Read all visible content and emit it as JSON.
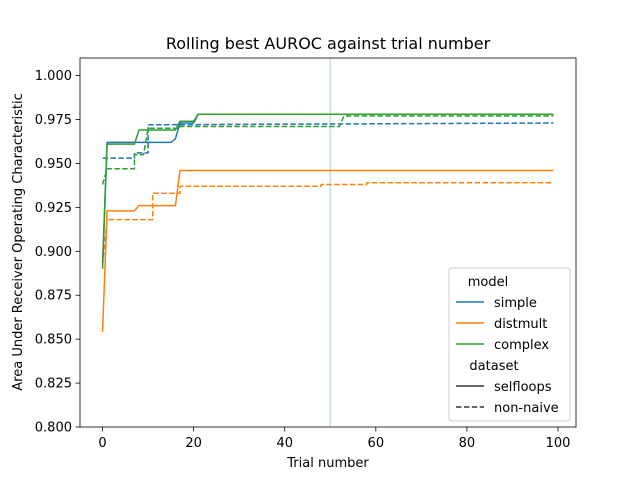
{
  "chart_data": {
    "type": "line",
    "title": "Rolling best AUROC against trial number",
    "xlabel": "Trial number",
    "ylabel": "Area Under Receiver Operating Characteristic",
    "xlim": [
      -4.95,
      103.95
    ],
    "ylim": [
      0.8,
      1.01
    ],
    "xticks": [
      0,
      20,
      40,
      60,
      80,
      100
    ],
    "yticks": [
      0.8,
      0.825,
      0.85,
      0.875,
      0.9,
      0.925,
      0.95,
      0.975,
      1.0
    ],
    "ytick_labels": [
      "0.800",
      "0.825",
      "0.850",
      "0.875",
      "0.900",
      "0.925",
      "0.950",
      "0.975",
      "1.000"
    ],
    "vline": {
      "x": 50,
      "color": "#c6dde4"
    },
    "grid": false,
    "legend_placement": "lower-right",
    "legend": {
      "model_title": "model",
      "models": [
        {
          "name": "simple",
          "color": "#1f77b4"
        },
        {
          "name": "distmult",
          "color": "#ff7f0e"
        },
        {
          "name": "complex",
          "color": "#2ca02c"
        }
      ],
      "dataset_title": "dataset",
      "datasets": [
        {
          "name": "selfloops",
          "dash": "solid"
        },
        {
          "name": "non-naive",
          "dash": "dashed"
        }
      ]
    },
    "series": [
      {
        "model": "simple",
        "dataset": "non-naive",
        "color": "#1f77b4",
        "dashed": true,
        "points": [
          [
            0,
            0.953
          ],
          [
            7,
            0.953
          ],
          [
            7,
            0.956
          ],
          [
            10,
            0.956
          ],
          [
            10,
            0.972
          ],
          [
            99,
            0.973
          ]
        ]
      },
      {
        "model": "distmult",
        "dataset": "non-naive",
        "color": "#ff7f0e",
        "dashed": true,
        "points": [
          [
            0,
            0.892
          ],
          [
            1,
            0.918
          ],
          [
            11,
            0.918
          ],
          [
            11,
            0.933
          ],
          [
            17,
            0.933
          ],
          [
            17,
            0.937
          ],
          [
            48,
            0.937
          ],
          [
            48,
            0.938
          ],
          [
            58,
            0.938
          ],
          [
            58,
            0.939
          ],
          [
            99,
            0.939
          ]
        ]
      },
      {
        "model": "complex",
        "dataset": "non-naive",
        "color": "#2ca02c",
        "dashed": true,
        "points": [
          [
            0,
            0.938
          ],
          [
            1,
            0.947
          ],
          [
            7,
            0.947
          ],
          [
            7,
            0.955
          ],
          [
            9,
            0.955
          ],
          [
            10,
            0.97
          ],
          [
            17,
            0.97
          ],
          [
            17,
            0.971
          ],
          [
            52,
            0.971
          ],
          [
            53,
            0.977
          ],
          [
            99,
            0.977
          ]
        ]
      },
      {
        "model": "simple",
        "dataset": "selfloops",
        "color": "#1f77b4",
        "dashed": false,
        "points": [
          [
            0,
            0.893
          ],
          [
            1,
            0.962
          ],
          [
            15,
            0.962
          ],
          [
            16,
            0.964
          ],
          [
            17,
            0.973
          ],
          [
            20,
            0.973
          ],
          [
            21,
            0.978
          ],
          [
            99,
            0.978
          ]
        ]
      },
      {
        "model": "distmult",
        "dataset": "selfloops",
        "color": "#ff7f0e",
        "dashed": false,
        "points": [
          [
            0,
            0.854
          ],
          [
            1,
            0.923
          ],
          [
            7,
            0.923
          ],
          [
            8,
            0.926
          ],
          [
            16,
            0.926
          ],
          [
            17,
            0.946
          ],
          [
            99,
            0.946
          ]
        ]
      },
      {
        "model": "complex",
        "dataset": "selfloops",
        "color": "#2ca02c",
        "dashed": false,
        "points": [
          [
            0,
            0.89
          ],
          [
            1,
            0.961
          ],
          [
            7,
            0.961
          ],
          [
            8,
            0.969
          ],
          [
            16,
            0.969
          ],
          [
            17,
            0.974
          ],
          [
            20,
            0.974
          ],
          [
            21,
            0.978
          ],
          [
            99,
            0.978
          ]
        ]
      }
    ]
  }
}
